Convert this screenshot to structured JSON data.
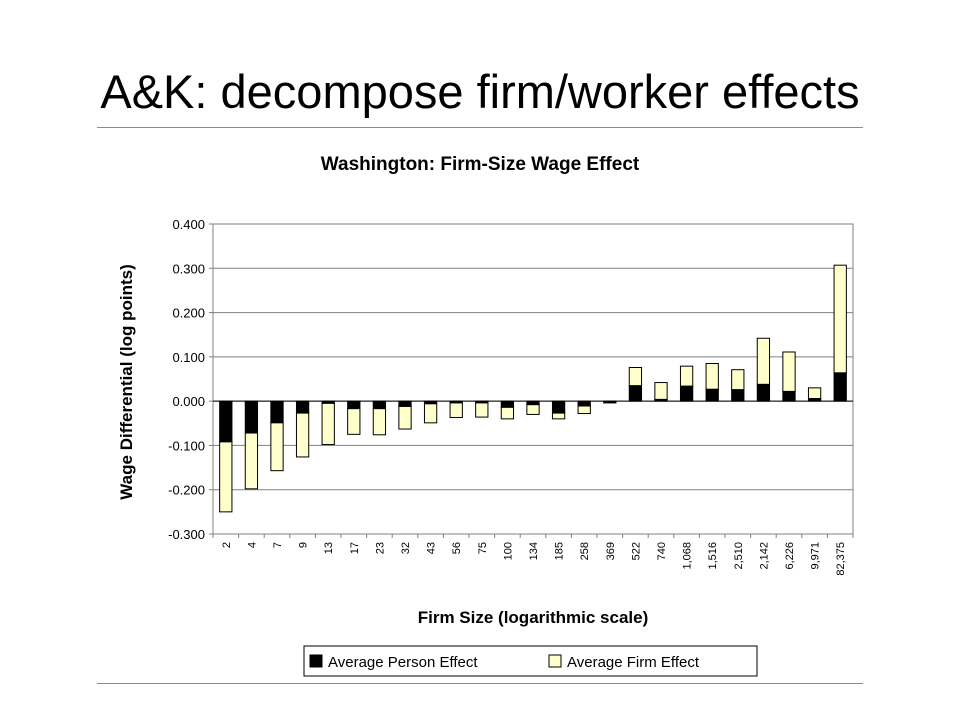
{
  "slide": {
    "title": "A&K: decompose firm/worker effects"
  },
  "chart_data": {
    "type": "bar",
    "stacked": true,
    "title": "Washington: Firm-Size Wage Effect",
    "xlabel": "Firm Size (logarithmic scale)",
    "ylabel": "Wage Differential (log points)",
    "ylim": [
      -0.3,
      0.4
    ],
    "yticks": [
      "0.400",
      "0.300",
      "0.200",
      "0.100",
      "0.000",
      "-0.100",
      "-0.200",
      "-0.300"
    ],
    "grid": true,
    "legend_position": "bottom",
    "categories": [
      "2",
      "4",
      "7",
      "9",
      "13",
      "17",
      "23",
      "32",
      "43",
      "56",
      "75",
      "100",
      "134",
      "185",
      "258",
      "369",
      "522",
      "740",
      "1,068",
      "1,516",
      "2,510",
      "2,142",
      "6,226",
      "9,971",
      "82,375"
    ],
    "series": [
      {
        "name": "Average Person Effect",
        "color": "#000000",
        "values": [
          -0.092,
          -0.072,
          -0.049,
          -0.027,
          -0.005,
          -0.017,
          -0.017,
          -0.012,
          -0.006,
          -0.004,
          -0.004,
          -0.014,
          -0.008,
          -0.027,
          -0.011,
          -0.004,
          0.035,
          0.004,
          0.034,
          0.027,
          0.026,
          0.038,
          0.022,
          0.006,
          0.064
        ]
      },
      {
        "name": "Average Firm Effect",
        "color": "#ffffcc",
        "values": [
          -0.158,
          -0.126,
          -0.108,
          -0.099,
          -0.093,
          -0.058,
          -0.059,
          -0.051,
          -0.043,
          -0.033,
          -0.032,
          -0.026,
          -0.022,
          -0.013,
          -0.017,
          0.0,
          0.041,
          0.038,
          0.045,
          0.058,
          0.045,
          0.104,
          0.089,
          0.024,
          0.243
        ]
      }
    ]
  }
}
